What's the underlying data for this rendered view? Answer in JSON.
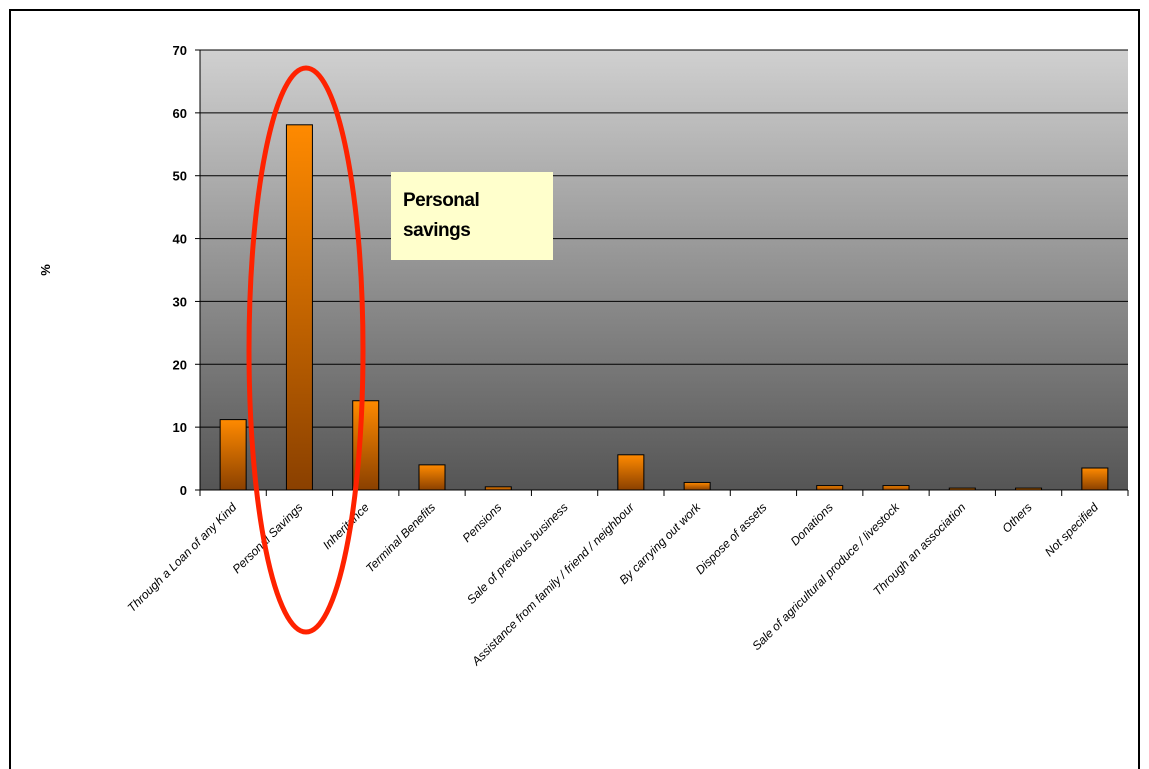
{
  "chart_data": {
    "type": "bar",
    "title": "",
    "xlabel": "",
    "ylabel": "%",
    "ylim": [
      0,
      70
    ],
    "yticks": [
      0,
      10,
      20,
      30,
      40,
      50,
      60,
      70
    ],
    "grid": true,
    "categories": [
      "Through a Loan of any Kind",
      "Personal Savings",
      "Inheritance",
      "Terminal Benefits",
      "Pensions",
      "Sale of previous business",
      "Assistance from family / friend / neighbour",
      "By carrying out work",
      "Dispose of assets",
      "Donations",
      "Sale of agricultural produce / livestock",
      "Through an association",
      "Others",
      "Not specified"
    ],
    "values": [
      11.2,
      58.1,
      14.2,
      4.0,
      0.5,
      0.0,
      5.6,
      1.2,
      0.0,
      0.7,
      0.7,
      0.3,
      0.3,
      3.5
    ],
    "colors": {
      "bar_top": "#ff8a00",
      "bar_bottom": "#8a4000",
      "plot_top": "#d0d0d0",
      "plot_bottom": "#555555",
      "highlight_ellipse": "#ff2200"
    },
    "annotation": {
      "lines": [
        "Personal",
        "savings"
      ],
      "background": "#ffffcc",
      "highlight_category": "Personal Savings"
    }
  }
}
